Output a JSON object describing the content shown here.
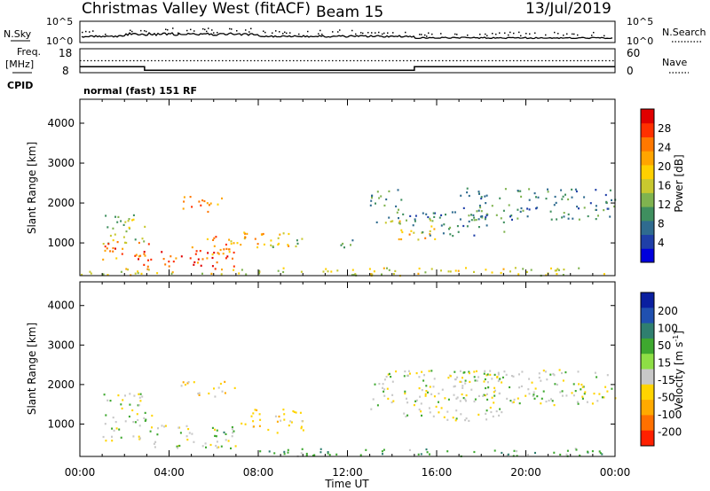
{
  "header": {
    "radar_title": "Christmas Valley West (fitACF)",
    "beam": "Beam 15",
    "date": "13/Jul/2019"
  },
  "panels": {
    "nsky_label": "N.Sky",
    "nsearch_label": "N.Search",
    "nsky_ticks": [
      "10^5",
      "10^0"
    ],
    "nsearch_ticks": [
      "10^5",
      "10^0"
    ],
    "freq_label_line1": "Freq.",
    "freq_label_line2": "[MHz]",
    "freq_ticks": [
      "18",
      "8"
    ],
    "nave_label": "Nave",
    "nave_ticks": [
      "60",
      "0"
    ],
    "cpid_label": "CPID",
    "cpid_value": "normal (fast) 151 RF"
  },
  "colorbars": {
    "power_label": "Power [dB]",
    "power_ticks": [
      "28",
      "24",
      "20",
      "16",
      "12",
      "8",
      "4"
    ],
    "power_colors": [
      "#0000dd",
      "#1f3fa8",
      "#2f6b8f",
      "#3f8f5f",
      "#7fb34f",
      "#c8c82f",
      "#ffd000",
      "#ffa500",
      "#ff7800",
      "#ff3000",
      "#e00000"
    ],
    "velocity_label_main": "Velocity [m s",
    "velocity_label_sup": "-1",
    "velocity_label_end": "]",
    "velocity_ticks": [
      "200",
      "100",
      "50",
      "15",
      "-15",
      "-50",
      "-100",
      "-200"
    ],
    "velocity_colors": [
      "#0a1fa0",
      "#2050b0",
      "#2f7f6f",
      "#3ea82f",
      "#8ede45",
      "#c8c8c8",
      "#ffd400",
      "#ffaa00",
      "#ff7000",
      "#ff2000"
    ]
  },
  "ground_scatter_color": "#c8c8c8",
  "chart_data": {
    "type": "heatmap",
    "xlabel": "Time UT",
    "ylabel": "Slant Range [km]",
    "xlim_hours": [
      0,
      24
    ],
    "ylim_km": [
      180,
      4600
    ],
    "x_tick_labels": [
      "00:00",
      "04:00",
      "08:00",
      "12:00",
      "16:00",
      "20:00",
      "00:00"
    ],
    "y_tick_labels": [
      "1000",
      "2000",
      "3000",
      "4000"
    ],
    "y_tick_values": [
      1000,
      2000,
      3000,
      4000
    ],
    "frequency_mhz": [
      {
        "t": 0,
        "f": 10.5
      },
      {
        "t": 2.9,
        "f": 9.0
      },
      {
        "t": 15.0,
        "f": 10.5
      },
      {
        "t": 24,
        "f": 10.5
      }
    ],
    "nave": [
      {
        "t": 0,
        "v": 30
      },
      {
        "t": 24,
        "v": 30
      }
    ],
    "power_blobs": [
      {
        "t": [
          1.0,
          3.0
        ],
        "r": [
          1000,
          1800
        ],
        "dB": 14
      },
      {
        "t": [
          1.0,
          3.2
        ],
        "r": [
          600,
          1100
        ],
        "dB": 24
      },
      {
        "t": [
          2.5,
          7.0
        ],
        "r": [
          350,
          800
        ],
        "dB": 27
      },
      {
        "t": [
          4.5,
          6.5
        ],
        "r": [
          1800,
          2200
        ],
        "dB": 22
      },
      {
        "t": [
          5.0,
          6.8
        ],
        "r": [
          600,
          1200
        ],
        "dB": 24
      },
      {
        "t": [
          6.5,
          9.5
        ],
        "r": [
          800,
          1300
        ],
        "dB": 20
      },
      {
        "t": [
          8.5,
          10.0
        ],
        "r": [
          900,
          1200
        ],
        "dB": 14
      },
      {
        "t": [
          11.5,
          12.5
        ],
        "r": [
          900,
          1150
        ],
        "dB": 8
      },
      {
        "t": [
          13.0,
          14.5
        ],
        "r": [
          1500,
          2400
        ],
        "dB": 10
      },
      {
        "t": [
          14.0,
          16.0
        ],
        "r": [
          1100,
          1600
        ],
        "dB": 18
      },
      {
        "t": [
          14.5,
          19.0
        ],
        "r": [
          1200,
          1800
        ],
        "dB": 8
      },
      {
        "t": [
          17.0,
          24.0
        ],
        "r": [
          1600,
          2400
        ],
        "dB": 8
      },
      {
        "t": [
          0.0,
          24.0
        ],
        "r": [
          200,
          400
        ],
        "dB": 16
      }
    ],
    "velocity_blobs": [
      {
        "t": [
          1.0,
          3.2
        ],
        "r": [
          600,
          1800
        ],
        "v": 0
      },
      {
        "t": [
          3.0,
          7.0
        ],
        "r": [
          400,
          1000
        ],
        "v": 0
      },
      {
        "t": [
          4.5,
          7.0
        ],
        "r": [
          1700,
          2100
        ],
        "v": -30
      },
      {
        "t": [
          6.0,
          7.0
        ],
        "r": [
          550,
          850
        ],
        "v": 40
      },
      {
        "t": [
          7.0,
          10.0
        ],
        "r": [
          800,
          1400
        ],
        "v": -40
      },
      {
        "t": [
          13.0,
          19.0
        ],
        "r": [
          1100,
          2400
        ],
        "v": 0
      },
      {
        "t": [
          17.0,
          24.0
        ],
        "r": [
          1500,
          2400
        ],
        "v": 0
      },
      {
        "t": [
          8.0,
          24.0
        ],
        "r": [
          200,
          400
        ],
        "v": 30
      }
    ]
  }
}
